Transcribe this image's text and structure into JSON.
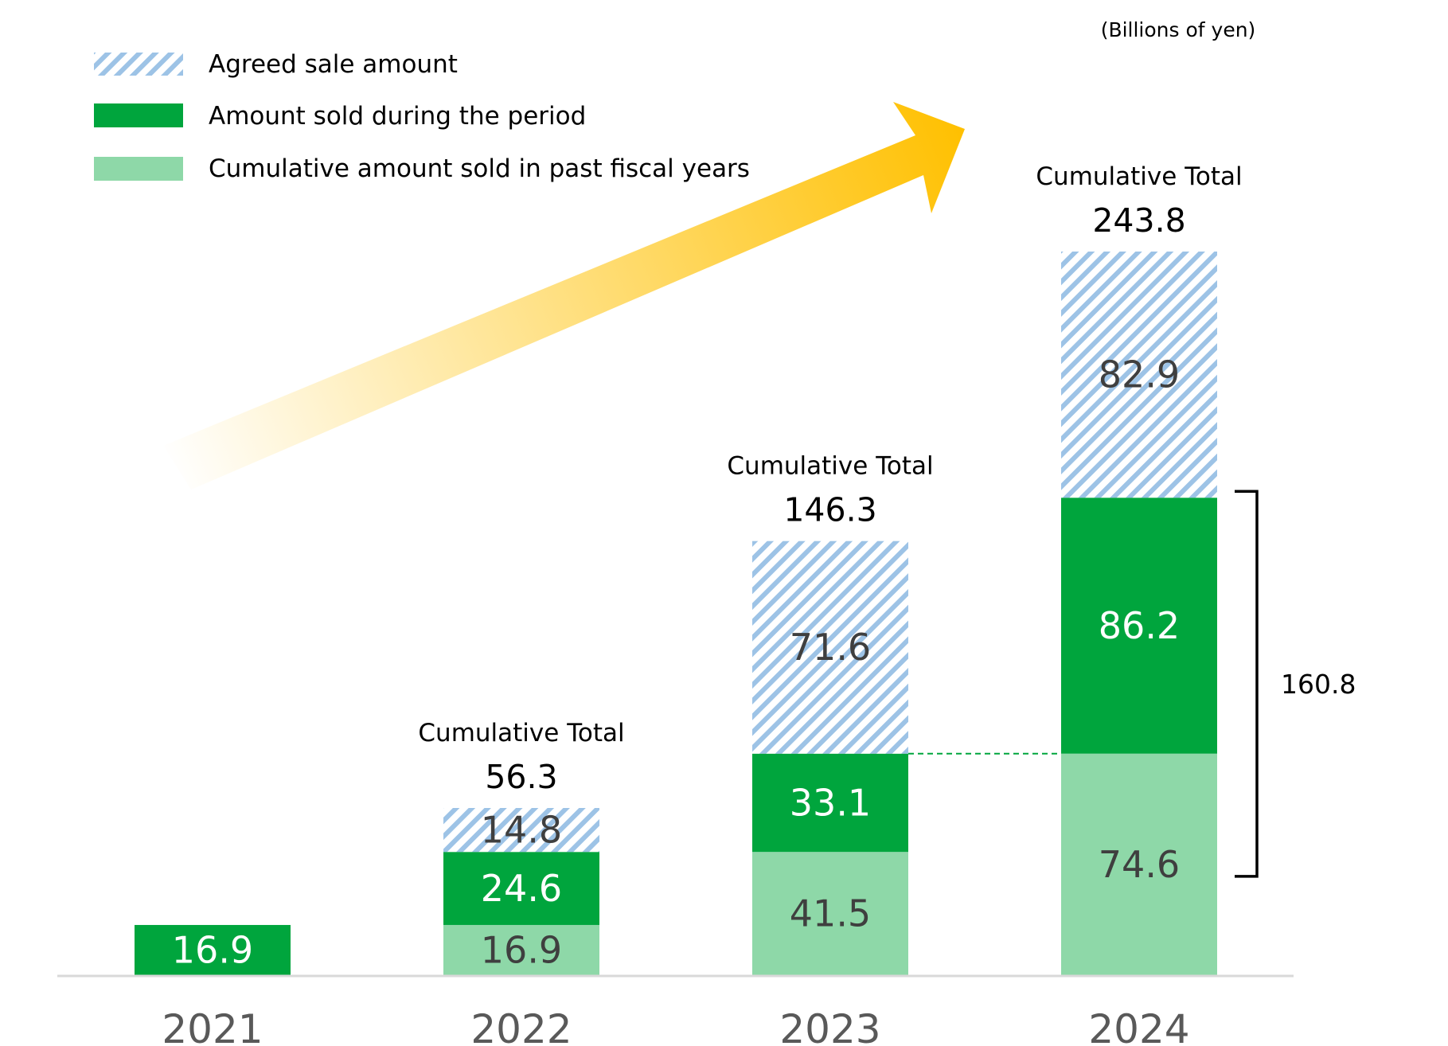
{
  "chart_data": {
    "type": "bar",
    "stacked": true,
    "unit_note": "(Billions of yen)",
    "categories": [
      "2021",
      "2022",
      "2023",
      "2024"
    ],
    "series": [
      {
        "name": "Cumulative amount sold in past fiscal years",
        "key": "past",
        "values": [
          0,
          16.9,
          41.5,
          74.6
        ],
        "labels": [
          "",
          "16.9",
          "41.5",
          "74.6"
        ]
      },
      {
        "name": "Amount sold during the period",
        "key": "period",
        "values": [
          16.9,
          24.6,
          33.1,
          86.2
        ],
        "labels": [
          "16.9",
          "24.6",
          "33.1",
          "86.2"
        ]
      },
      {
        "name": "Agreed sale amount",
        "key": "agreed",
        "values": [
          0,
          14.8,
          71.6,
          82.9
        ],
        "labels": [
          "",
          "14.8",
          "71.6",
          "82.9"
        ]
      }
    ],
    "legend_order": [
      "agreed",
      "period",
      "past"
    ],
    "legend_position": "top-left",
    "totals": [
      {
        "category": "2022",
        "label": "Cumulative Total",
        "value": "56.3"
      },
      {
        "category": "2023",
        "label": "Cumulative Total",
        "value": "146.3"
      },
      {
        "category": "2024",
        "label": "Cumulative Total",
        "value": "243.8"
      }
    ],
    "bracket": {
      "category": "2024",
      "value_text": "160.8",
      "from": 0,
      "to": 160.8
    },
    "ylim": [
      0,
      260
    ],
    "grid": false,
    "colors": {
      "past": "#8ED8A8",
      "period": "#00A53D",
      "agreed_stripe": "#9DC3E6",
      "arrow": "#FFC000",
      "axis": "#D9D9D9"
    }
  }
}
